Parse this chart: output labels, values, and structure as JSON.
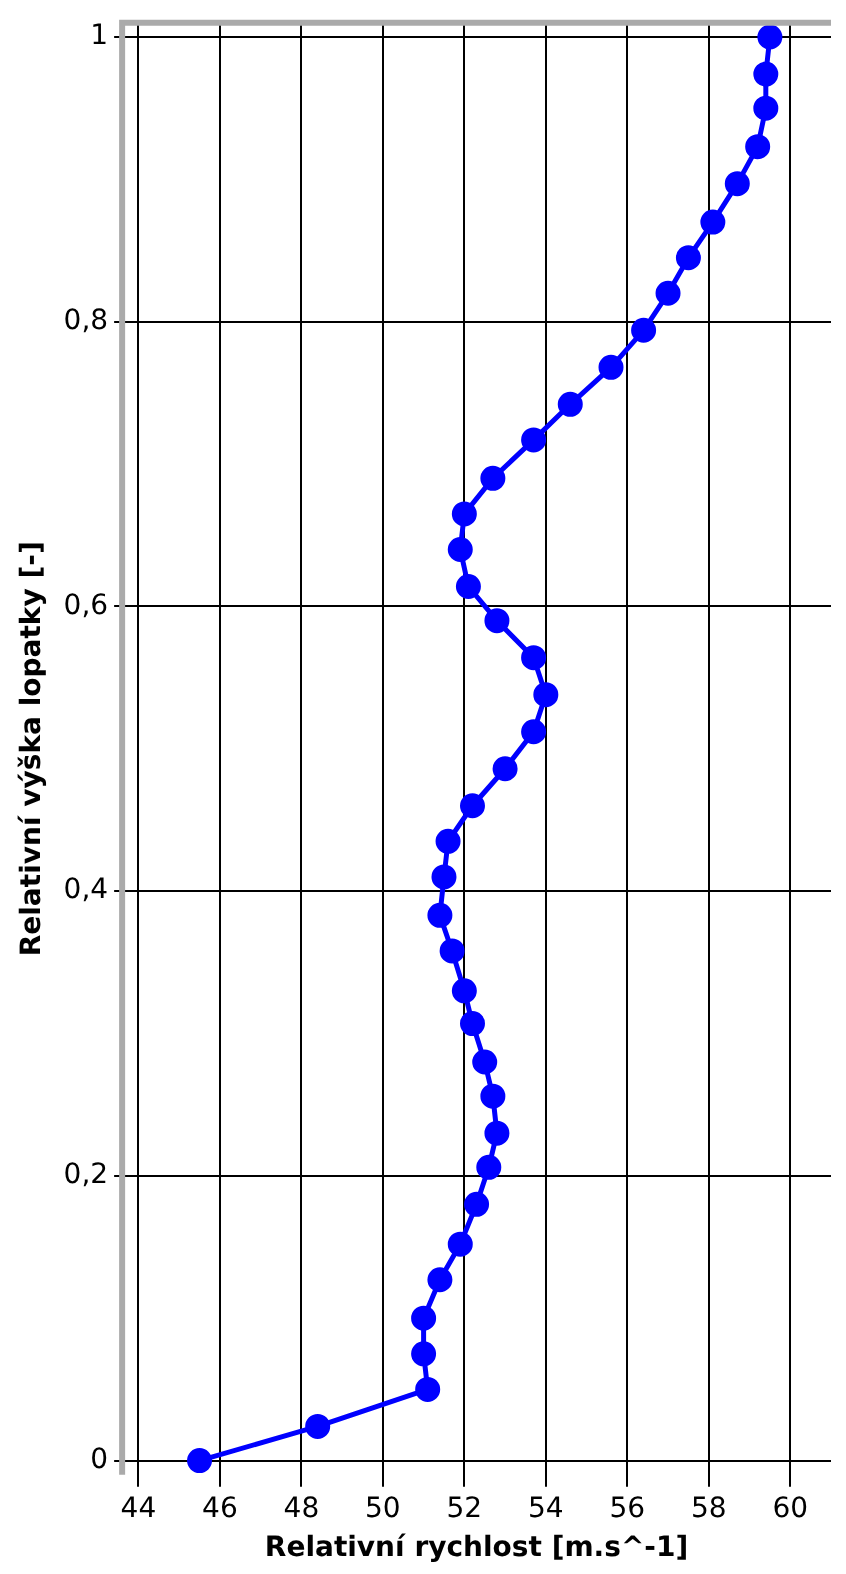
{
  "chart_data": {
    "type": "line",
    "xlabel": "Relativní rychlost [m.s^-1]",
    "ylabel": "Relativní výška lopatky [-]",
    "x": [
      45.5,
      48.4,
      51.1,
      51.0,
      51.0,
      51.4,
      51.9,
      52.3,
      52.6,
      52.8,
      52.7,
      52.5,
      52.2,
      52.0,
      51.7,
      51.4,
      51.5,
      51.6,
      52.2,
      53.0,
      53.7,
      54.0,
      53.7,
      52.8,
      52.1,
      51.9,
      52.0,
      52.7,
      53.7,
      54.6,
      55.6,
      56.4,
      57.0,
      57.5,
      58.1,
      58.7,
      59.2,
      59.4,
      59.4,
      59.5
    ],
    "series": [
      {
        "color": "#0000ff",
        "values": [
          0,
          0.024,
          0.05,
          0.075,
          0.1,
          0.127,
          0.152,
          0.18,
          0.206,
          0.23,
          0.256,
          0.28,
          0.307,
          0.33,
          0.358,
          0.383,
          0.41,
          0.435,
          0.46,
          0.486,
          0.512,
          0.538,
          0.564,
          0.59,
          0.614,
          0.64,
          0.665,
          0.69,
          0.717,
          0.742,
          0.768,
          0.794,
          0.82,
          0.845,
          0.87,
          0.897,
          0.923,
          0.95,
          0.974,
          1.0
        ]
      }
    ],
    "xlim": [
      43.6,
      61
    ],
    "xticks": [
      44,
      46,
      48,
      50,
      52,
      54,
      56,
      58,
      60
    ],
    "ylim": [
      -0.01,
      1.01
    ],
    "yticks": [
      0,
      {
        "value": 0.2,
        "label": "0,2"
      },
      {
        "value": 0.4,
        "label": "0,4"
      },
      {
        "value": 0.6,
        "label": "0,6"
      },
      {
        "value": 0.8,
        "label": "0,8"
      },
      1
    ],
    "grid": true,
    "legend": false,
    "marker": "circle",
    "line_style": "solid"
  }
}
